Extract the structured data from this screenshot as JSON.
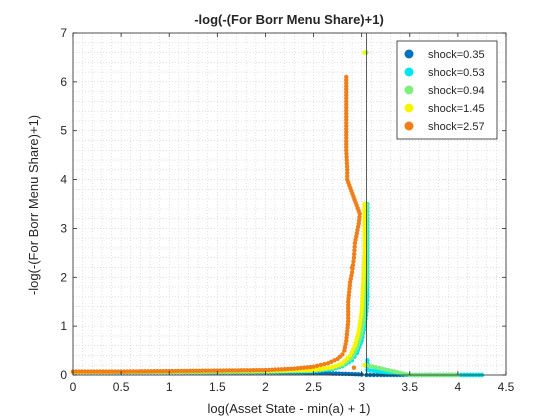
{
  "chart_data": {
    "type": "scatter",
    "title": "-log(-(For Borr Menu Share)+1)",
    "xlabel": "log(Asset State - min(a) + 1)",
    "ylabel": "-log(-(For Borr Menu Share)+1)",
    "xlim": [
      0,
      4.5
    ],
    "ylim": [
      0,
      7
    ],
    "xticks": [
      0,
      0.5,
      1,
      1.5,
      2,
      2.5,
      3,
      3.5,
      4,
      4.5
    ],
    "xtick_labels": [
      "0",
      "0.5",
      "1",
      "1.5",
      "2",
      "2.5",
      "3",
      "3.5",
      "4",
      "4.5"
    ],
    "yticks": [
      0,
      1,
      2,
      3,
      4,
      5,
      6,
      7
    ],
    "ytick_labels": [
      "0",
      "1",
      "2",
      "3",
      "4",
      "5",
      "6",
      "7"
    ],
    "grid": "minor-dotted",
    "legend_position": "top-right",
    "reference_line_x": 3.05,
    "series": [
      {
        "name": "shock=0.35",
        "color": "#0072BD",
        "points": [
          [
            0,
            0.06
          ],
          [
            0.5,
            0.06
          ],
          [
            1,
            0.06
          ],
          [
            1.5,
            0.055
          ],
          [
            2,
            0.055
          ],
          [
            2.5,
            0.05
          ],
          [
            2.7,
            0.03
          ],
          [
            2.9,
            0.02
          ],
          [
            3.0,
            0.01
          ],
          [
            3.05,
            0.0
          ],
          [
            3.2,
            0.0
          ],
          [
            3.5,
            0.0
          ],
          [
            4.0,
            0.0
          ],
          [
            4.25,
            0.0
          ]
        ]
      },
      {
        "name": "shock=0.53",
        "color": "#00E5EE",
        "points": [
          [
            0,
            0.06
          ],
          [
            0.5,
            0.06
          ],
          [
            1,
            0.06
          ],
          [
            1.5,
            0.06
          ],
          [
            2,
            0.065
          ],
          [
            2.5,
            0.08
          ],
          [
            2.7,
            0.12
          ],
          [
            2.8,
            0.18
          ],
          [
            2.9,
            0.3
          ],
          [
            2.95,
            0.45
          ],
          [
            3.0,
            0.7
          ],
          [
            3.03,
            1.0
          ],
          [
            3.05,
            1.3
          ],
          [
            3.06,
            1.6
          ],
          [
            3.06,
            2.0
          ],
          [
            3.06,
            2.4
          ],
          [
            3.06,
            2.8
          ],
          [
            3.06,
            3.2
          ],
          [
            3.06,
            3.5
          ],
          [
            3.06,
            0.3
          ],
          [
            3.06,
            0.1
          ],
          [
            3.5,
            0.0
          ],
          [
            4.0,
            0.0
          ],
          [
            4.25,
            0.0
          ]
        ]
      },
      {
        "name": "shock=0.94",
        "color": "#7CEF7C",
        "points": [
          [
            0,
            0.06
          ],
          [
            0.5,
            0.065
          ],
          [
            1,
            0.065
          ],
          [
            1.5,
            0.07
          ],
          [
            2,
            0.075
          ],
          [
            2.5,
            0.09
          ],
          [
            2.7,
            0.14
          ],
          [
            2.8,
            0.2
          ],
          [
            2.9,
            0.35
          ],
          [
            2.95,
            0.55
          ],
          [
            3.0,
            0.85
          ],
          [
            3.03,
            1.2
          ],
          [
            3.04,
            1.6
          ],
          [
            3.05,
            2.0
          ],
          [
            3.05,
            2.4
          ],
          [
            3.05,
            2.8
          ],
          [
            3.05,
            3.5
          ],
          [
            3.05,
            6.6
          ],
          [
            3.05,
            0.2
          ],
          [
            3.5,
            0.0
          ],
          [
            4.0,
            0.0
          ]
        ]
      },
      {
        "name": "shock=1.45",
        "color": "#F5F500",
        "points": [
          [
            0,
            0.06
          ],
          [
            0.5,
            0.065
          ],
          [
            1,
            0.07
          ],
          [
            1.5,
            0.075
          ],
          [
            2,
            0.08
          ],
          [
            2.5,
            0.1
          ],
          [
            2.7,
            0.16
          ],
          [
            2.8,
            0.24
          ],
          [
            2.88,
            0.4
          ],
          [
            2.93,
            0.6
          ],
          [
            2.97,
            0.9
          ],
          [
            3.0,
            1.3
          ],
          [
            3.01,
            1.7
          ],
          [
            3.02,
            2.1
          ],
          [
            3.03,
            2.5
          ],
          [
            3.03,
            2.8
          ],
          [
            3.03,
            3.5
          ],
          [
            3.03,
            6.6
          ],
          [
            3.03,
            0.2
          ]
        ]
      },
      {
        "name": "shock=2.57",
        "color": "#F07F1A",
        "points": [
          [
            0,
            0.07
          ],
          [
            0.5,
            0.07
          ],
          [
            1,
            0.08
          ],
          [
            1.5,
            0.09
          ],
          [
            2,
            0.1
          ],
          [
            2.3,
            0.13
          ],
          [
            2.5,
            0.17
          ],
          [
            2.65,
            0.24
          ],
          [
            2.75,
            0.33
          ],
          [
            2.8,
            0.42
          ],
          [
            2.82,
            0.5
          ],
          [
            2.84,
            0.7
          ],
          [
            2.85,
            0.9
          ],
          [
            2.86,
            1.1
          ],
          [
            2.86,
            1.3
          ],
          [
            2.86,
            1.5
          ],
          [
            2.87,
            1.7
          ],
          [
            2.88,
            1.9
          ],
          [
            2.9,
            2.1
          ],
          [
            2.92,
            2.4
          ],
          [
            2.93,
            2.7
          ],
          [
            2.95,
            2.9
          ],
          [
            2.97,
            3.1
          ],
          [
            2.98,
            3.3
          ],
          [
            2.85,
            4.0
          ],
          [
            2.85,
            4.2
          ],
          [
            2.84,
            4.6
          ],
          [
            2.84,
            6.1
          ],
          [
            2.9,
            2.2
          ],
          [
            2.92,
            0.15
          ]
        ]
      }
    ]
  }
}
